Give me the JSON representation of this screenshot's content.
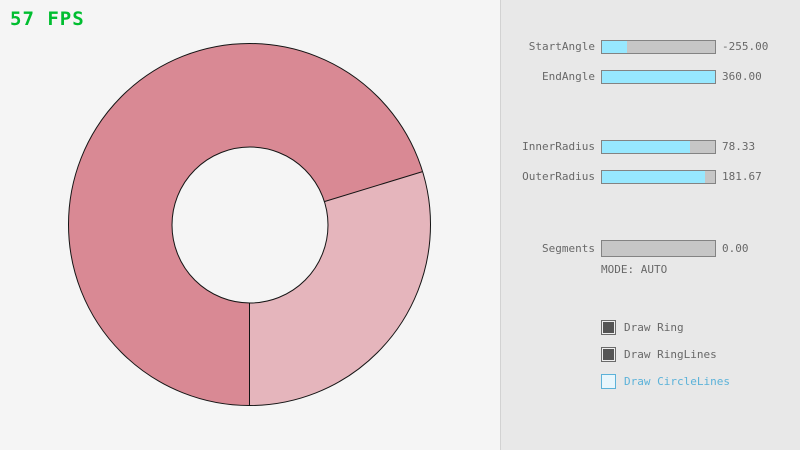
{
  "fps": {
    "label": "57 FPS",
    "color": "#00be30"
  },
  "ring": {
    "type": "donut",
    "dark_color": "#d98994",
    "light_color": "#e5b5bc",
    "outline_color": "#141414",
    "light_segment_deg": [
      73,
      180
    ],
    "inner_radius": 78.33,
    "outer_radius": 181.67
  },
  "panel": {
    "sliders": [
      {
        "name": "StartAngle",
        "value": "-255.00",
        "fill_pct": 22
      },
      {
        "name": "EndAngle",
        "value": "360.00",
        "fill_pct": 100
      },
      {
        "name": "InnerRadius",
        "value": "78.33",
        "fill_pct": 78
      },
      {
        "name": "OuterRadius",
        "value": "181.67",
        "fill_pct": 91
      },
      {
        "name": "Segments",
        "value": "0.00",
        "fill_pct": 0
      }
    ],
    "mode_label": "MODE: AUTO",
    "checkboxes": [
      {
        "label": "Draw Ring",
        "checked": true,
        "focused": false
      },
      {
        "label": "Draw RingLines",
        "checked": true,
        "focused": false
      },
      {
        "label": "Draw CircleLines",
        "checked": false,
        "focused": true
      }
    ]
  },
  "colors": {
    "canvas_bg": "#f5f5f5",
    "panel_bg": "#e8e8e8",
    "slider_fill": "#97e8ff",
    "slider_track": "#c6c6c6",
    "text": "#686868",
    "focus": "#5bb2d9"
  }
}
